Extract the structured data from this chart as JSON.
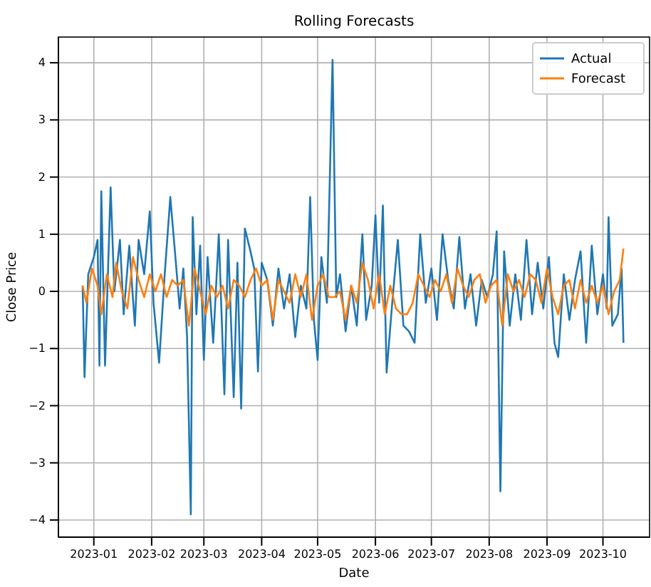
{
  "chart_data": {
    "type": "line",
    "title": "Rolling Forecasts",
    "xlabel": "Date",
    "ylabel": "Close Price",
    "grid": true,
    "legend": "top right",
    "line_style": "solid",
    "xlim": [
      "2022-12-13",
      "2023-10-26"
    ],
    "ylim": [
      -4.3,
      4.45
    ],
    "xticks": [
      "2023-01",
      "2023-02",
      "2023-03",
      "2023-04",
      "2023-05",
      "2023-06",
      "2023-07",
      "2023-08",
      "2023-09",
      "2023-10"
    ],
    "yticks": [
      -4,
      -3,
      -2,
      -1,
      0,
      1,
      2,
      3,
      4
    ],
    "series": [
      {
        "name": "Actual",
        "color": "#1f77b4",
        "x": [
          "2022-12-26",
          "2022-12-27",
          "2022-12-29",
          "2023-01-01",
          "2023-01-03",
          "2023-01-04",
          "2023-01-05",
          "2023-01-07",
          "2023-01-10",
          "2023-01-12",
          "2023-01-15",
          "2023-01-17",
          "2023-01-20",
          "2023-01-23",
          "2023-01-25",
          "2023-01-28",
          "2023-01-31",
          "2023-02-02",
          "2023-02-05",
          "2023-02-08",
          "2023-02-11",
          "2023-02-14",
          "2023-02-16",
          "2023-02-18",
          "2023-02-20",
          "2023-02-22",
          "2023-02-23",
          "2023-02-25",
          "2023-02-27",
          "2023-03-01",
          "2023-03-03",
          "2023-03-06",
          "2023-03-09",
          "2023-03-12",
          "2023-03-14",
          "2023-03-17",
          "2023-03-19",
          "2023-03-21",
          "2023-03-23",
          "2023-03-26",
          "2023-03-28",
          "2023-03-30",
          "2023-04-01",
          "2023-04-04",
          "2023-04-07",
          "2023-04-10",
          "2023-04-13",
          "2023-04-16",
          "2023-04-19",
          "2023-04-22",
          "2023-04-25",
          "2023-04-27",
          "2023-04-29",
          "2023-05-01",
          "2023-05-03",
          "2023-05-06",
          "2023-05-09",
          "2023-05-11",
          "2023-05-13",
          "2023-05-16",
          "2023-05-19",
          "2023-05-22",
          "2023-05-25",
          "2023-05-27",
          "2023-05-30",
          "2023-06-01",
          "2023-06-03",
          "2023-06-05",
          "2023-06-07",
          "2023-06-10",
          "2023-06-13",
          "2023-06-16",
          "2023-06-19",
          "2023-06-22",
          "2023-06-25",
          "2023-06-28",
          "2023-07-01",
          "2023-07-04",
          "2023-07-07",
          "2023-07-10",
          "2023-07-13",
          "2023-07-16",
          "2023-07-19",
          "2023-07-22",
          "2023-07-25",
          "2023-07-28",
          "2023-07-31",
          "2023-08-03",
          "2023-08-05",
          "2023-08-07",
          "2023-08-09",
          "2023-08-12",
          "2023-08-15",
          "2023-08-18",
          "2023-08-21",
          "2023-08-24",
          "2023-08-27",
          "2023-08-30",
          "2023-09-02",
          "2023-09-05",
          "2023-09-07",
          "2023-09-10",
          "2023-09-13",
          "2023-09-16",
          "2023-09-19",
          "2023-09-22",
          "2023-09-25",
          "2023-09-28",
          "2023-10-01",
          "2023-10-03",
          "2023-10-04",
          "2023-10-06",
          "2023-10-09",
          "2023-10-11",
          "2023-10-12"
        ],
        "values": [
          0.1,
          -1.5,
          0.3,
          0.6,
          0.9,
          -1.3,
          1.75,
          -1.3,
          1.82,
          0.0,
          0.9,
          -0.4,
          0.8,
          -0.6,
          0.9,
          0.3,
          1.4,
          -0.2,
          -1.25,
          0.3,
          1.65,
          0.5,
          -0.3,
          0.4,
          -0.8,
          -3.9,
          1.3,
          -0.4,
          0.8,
          -1.2,
          0.6,
          -0.9,
          1.0,
          -1.8,
          0.9,
          -1.85,
          0.5,
          -2.05,
          1.1,
          0.7,
          0.4,
          -1.4,
          0.5,
          0.2,
          -0.6,
          0.4,
          -0.3,
          0.3,
          -0.8,
          0.1,
          -0.3,
          1.65,
          -0.5,
          -1.2,
          0.6,
          -0.2,
          4.05,
          -0.1,
          0.3,
          -0.7,
          0.1,
          -0.6,
          1.0,
          -0.5,
          0.1,
          1.33,
          -0.2,
          1.5,
          -1.42,
          -0.2,
          0.9,
          -0.6,
          -0.7,
          -0.9,
          1.0,
          -0.2,
          0.4,
          -0.5,
          1.0,
          0.2,
          -0.3,
          0.95,
          -0.3,
          0.3,
          -0.6,
          0.2,
          -0.1,
          0.3,
          1.05,
          -3.5,
          0.7,
          -0.6,
          0.3,
          -0.5,
          0.9,
          -0.4,
          0.5,
          -0.3,
          0.6,
          -0.9,
          -1.15,
          0.3,
          -0.5,
          0.2,
          0.7,
          -0.9,
          0.8,
          -0.4,
          0.3,
          -0.3,
          1.3,
          -0.6,
          -0.4,
          0.4,
          -0.9
        ]
      },
      {
        "name": "Forecast",
        "color": "#ff7f0e",
        "x": [
          "2022-12-26",
          "2022-12-28",
          "2022-12-31",
          "2023-01-03",
          "2023-01-05",
          "2023-01-08",
          "2023-01-11",
          "2023-01-13",
          "2023-01-16",
          "2023-01-19",
          "2023-01-22",
          "2023-01-25",
          "2023-01-28",
          "2023-01-31",
          "2023-02-03",
          "2023-02-06",
          "2023-02-09",
          "2023-02-12",
          "2023-02-15",
          "2023-02-18",
          "2023-02-21",
          "2023-02-24",
          "2023-02-27",
          "2023-03-02",
          "2023-03-05",
          "2023-03-08",
          "2023-03-11",
          "2023-03-14",
          "2023-03-17",
          "2023-03-20",
          "2023-03-23",
          "2023-03-26",
          "2023-03-29",
          "2023-04-01",
          "2023-04-04",
          "2023-04-07",
          "2023-04-10",
          "2023-04-13",
          "2023-04-16",
          "2023-04-19",
          "2023-04-22",
          "2023-04-25",
          "2023-04-28",
          "2023-05-01",
          "2023-05-04",
          "2023-05-07",
          "2023-05-10",
          "2023-05-13",
          "2023-05-16",
          "2023-05-19",
          "2023-05-22",
          "2023-05-25",
          "2023-05-28",
          "2023-05-31",
          "2023-06-03",
          "2023-06-06",
          "2023-06-09",
          "2023-06-12",
          "2023-06-15",
          "2023-06-18",
          "2023-06-21",
          "2023-06-24",
          "2023-06-27",
          "2023-06-30",
          "2023-07-03",
          "2023-07-06",
          "2023-07-09",
          "2023-07-12",
          "2023-07-15",
          "2023-07-18",
          "2023-07-21",
          "2023-07-24",
          "2023-07-27",
          "2023-07-30",
          "2023-08-02",
          "2023-08-05",
          "2023-08-08",
          "2023-08-11",
          "2023-08-14",
          "2023-08-17",
          "2023-08-20",
          "2023-08-23",
          "2023-08-26",
          "2023-08-29",
          "2023-09-01",
          "2023-09-04",
          "2023-09-07",
          "2023-09-10",
          "2023-09-13",
          "2023-09-16",
          "2023-09-19",
          "2023-09-22",
          "2023-09-25",
          "2023-09-28",
          "2023-10-01",
          "2023-10-04",
          "2023-10-07",
          "2023-10-10",
          "2023-10-12"
        ],
        "values": [
          0.1,
          -0.2,
          0.4,
          0.1,
          -0.4,
          0.3,
          -0.1,
          0.5,
          0.0,
          -0.3,
          0.6,
          0.2,
          -0.1,
          0.3,
          0.0,
          0.3,
          -0.1,
          0.2,
          0.1,
          0.2,
          -0.6,
          0.4,
          0.0,
          -0.4,
          0.1,
          -0.1,
          0.1,
          -0.3,
          0.2,
          0.1,
          -0.1,
          0.2,
          0.4,
          0.1,
          0.2,
          -0.5,
          0.2,
          0.0,
          -0.2,
          0.3,
          -0.1,
          0.3,
          -0.5,
          0.1,
          0.3,
          -0.1,
          -0.1,
          0.0,
          -0.5,
          0.1,
          -0.2,
          0.5,
          0.2,
          -0.3,
          0.3,
          -0.4,
          0.1,
          -0.3,
          -0.4,
          -0.4,
          -0.2,
          0.3,
          0.1,
          -0.1,
          0.2,
          0.0,
          0.3,
          -0.2,
          0.4,
          0.1,
          -0.1,
          0.2,
          0.3,
          -0.2,
          0.1,
          0.2,
          -0.6,
          0.3,
          0.0,
          0.2,
          -0.1,
          0.3,
          0.2,
          -0.2,
          0.4,
          -0.1,
          -0.4,
          0.1,
          0.2,
          -0.3,
          0.2,
          -0.2,
          0.1,
          -0.2,
          0.1,
          -0.4,
          0.0,
          0.2,
          0.75
        ]
      }
    ]
  }
}
